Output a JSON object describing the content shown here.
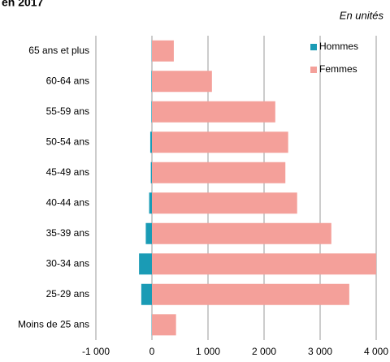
{
  "chart_data": {
    "type": "hbar",
    "title": "en 2017",
    "subtitle": "En unités",
    "categories": [
      "65 ans et plus",
      "60-64 ans",
      "55-59 ans",
      "50-54 ans",
      "45-49 ans",
      "40-44 ans",
      "35-39 ans",
      "30-34 ans",
      "25-29 ans",
      "Moins de 25 ans"
    ],
    "series": [
      {
        "name": "Hommes",
        "color": "#1a9bb5",
        "values": [
          -5,
          -10,
          -10,
          -30,
          -20,
          -50,
          -110,
          -230,
          -190,
          -5
        ]
      },
      {
        "name": "Femmes",
        "color": "#f4a09a",
        "values": [
          390,
          1070,
          2200,
          2430,
          2380,
          2590,
          3200,
          4000,
          3520,
          430
        ]
      }
    ],
    "xlim": [
      -1000,
      4000
    ],
    "xticks": [
      {
        "value": -1000,
        "label": "-1 000"
      },
      0,
      {
        "value": 1000,
        "label": "1 000"
      },
      {
        "value": 2000,
        "label": "2 000"
      },
      {
        "value": 3000,
        "label": "3 000"
      },
      {
        "value": 4000,
        "label": "4 000"
      }
    ],
    "grid": true,
    "legend": "top-right"
  }
}
